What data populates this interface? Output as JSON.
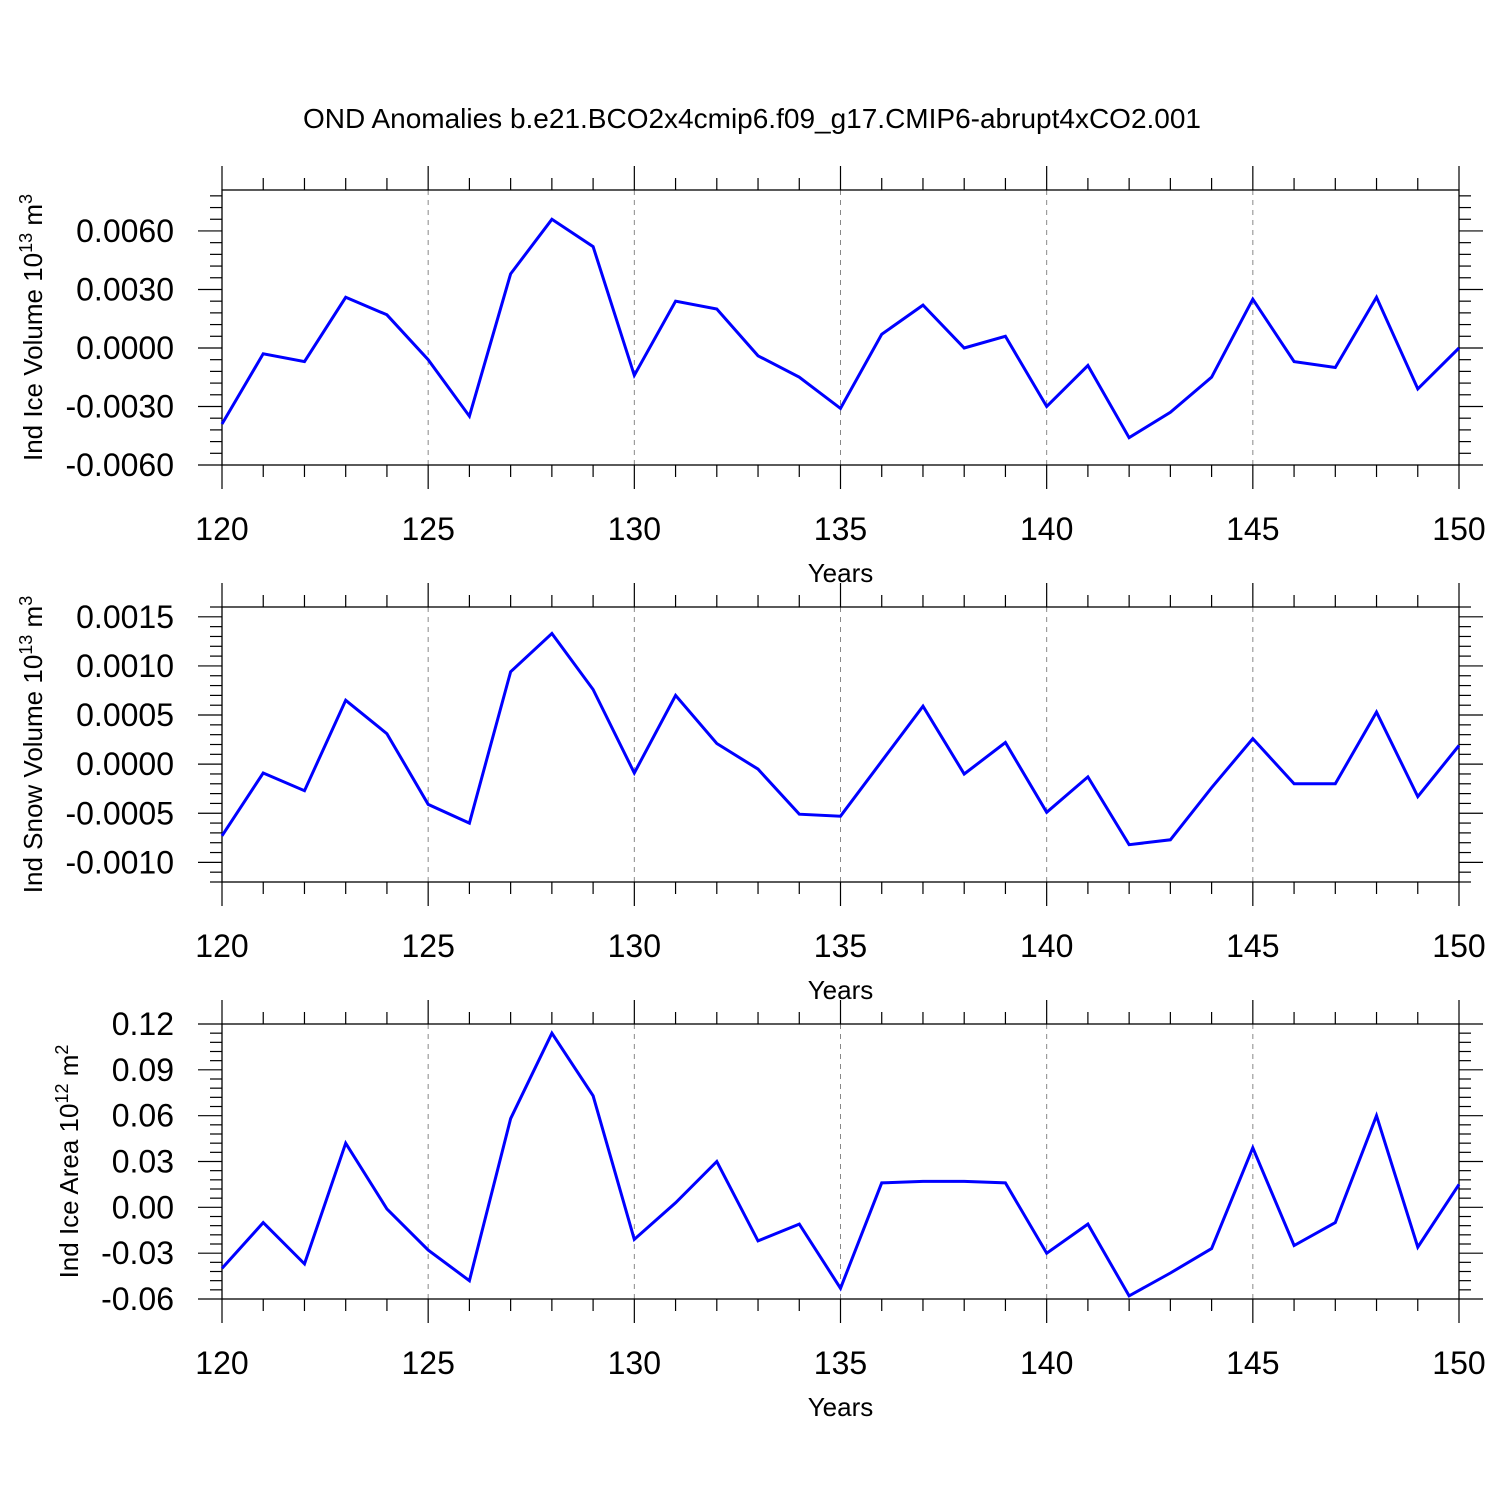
{
  "title": "OND Anomalies b.e21.BCO2x4cmip6.f09_g17.CMIP6-abrupt4xCO2.001",
  "colors": {
    "series": "#0000ff",
    "axis": "#000000",
    "grid": "#888888"
  },
  "chart_data": [
    {
      "type": "line",
      "xlabel": "Years",
      "ylabel": {
        "base": "Ind Ice Volume 10",
        "exp": "13",
        "unit": " m",
        "unit_exp": "3"
      },
      "xlim": [
        120,
        150
      ],
      "ylim": [
        -0.006,
        0.0081
      ],
      "x_ticks": [
        "120",
        "125",
        "130",
        "135",
        "140",
        "145",
        "150"
      ],
      "y_ticks": [
        {
          "value": 0.006,
          "label": "0.0060"
        },
        {
          "value": 0.003,
          "label": "0.0030"
        },
        {
          "value": 0.0,
          "label": "0.0000"
        },
        {
          "value": -0.003,
          "label": "-0.0030"
        },
        {
          "value": -0.006,
          "label": "-0.0060"
        }
      ],
      "grid": "vertical dashed at major x ticks",
      "x": [
        120,
        121,
        122,
        123,
        124,
        125,
        126,
        127,
        128,
        129,
        130,
        131,
        132,
        133,
        134,
        135,
        136,
        137,
        138,
        139,
        140,
        141,
        142,
        143,
        144,
        145,
        146,
        147,
        148,
        149,
        150
      ],
      "series": [
        {
          "values": [
            -0.0039,
            -0.0003,
            -0.0007,
            0.0026,
            0.0017,
            -0.0006,
            -0.0035,
            0.0038,
            0.0066,
            0.0052,
            -0.0014,
            0.0024,
            0.002,
            -0.0004,
            -0.0015,
            -0.0031,
            0.0007,
            0.0022,
            0.0,
            0.0006,
            -0.003,
            -0.0009,
            -0.0046,
            -0.0033,
            -0.0015,
            0.0025,
            -0.0007,
            -0.001,
            0.0026,
            -0.0021,
            0.0
          ]
        }
      ]
    },
    {
      "type": "line",
      "xlabel": "Years",
      "ylabel": {
        "base": "Ind Snow Volume 10",
        "exp": "13",
        "unit": " m",
        "unit_exp": "3"
      },
      "xlim": [
        120,
        150
      ],
      "ylim": [
        -0.0012,
        0.0016
      ],
      "x_ticks": [
        "120",
        "125",
        "130",
        "135",
        "140",
        "145",
        "150"
      ],
      "y_ticks": [
        {
          "value": 0.0015,
          "label": "0.0015"
        },
        {
          "value": 0.001,
          "label": "0.0010"
        },
        {
          "value": 0.0005,
          "label": "0.0005"
        },
        {
          "value": 0.0,
          "label": "0.0000"
        },
        {
          "value": -0.0005,
          "label": "-0.0005"
        },
        {
          "value": -0.001,
          "label": "-0.0010"
        }
      ],
      "grid": "vertical dashed at major x ticks",
      "x": [
        120,
        121,
        122,
        123,
        124,
        125,
        126,
        127,
        128,
        129,
        130,
        131,
        132,
        133,
        134,
        135,
        136,
        137,
        138,
        139,
        140,
        141,
        142,
        143,
        144,
        145,
        146,
        147,
        148,
        149,
        150
      ],
      "series": [
        {
          "values": [
            -0.00073,
            -9e-05,
            -0.00027,
            0.00065,
            0.00031,
            -0.00041,
            -0.0006,
            0.00094,
            0.00133,
            0.00076,
            -9e-05,
            0.0007,
            0.00021,
            -5e-05,
            -0.00051,
            -0.00053,
            3e-05,
            0.00059,
            -0.0001,
            0.00022,
            -0.00049,
            -0.00013,
            -0.00082,
            -0.00077,
            -0.00024,
            0.00026,
            -0.0002,
            -0.0002,
            0.00053,
            -0.00033,
            0.00019
          ]
        }
      ]
    },
    {
      "type": "line",
      "xlabel": "Years",
      "ylabel": {
        "base": "Ind Ice Area 10",
        "exp": "12",
        "unit": " m",
        "unit_exp": "2"
      },
      "xlim": [
        120,
        150
      ],
      "ylim": [
        -0.06,
        0.12
      ],
      "x_ticks": [
        "120",
        "125",
        "130",
        "135",
        "140",
        "145",
        "150"
      ],
      "y_ticks": [
        {
          "value": 0.12,
          "label": "0.12"
        },
        {
          "value": 0.09,
          "label": "0.09"
        },
        {
          "value": 0.06,
          "label": "0.06"
        },
        {
          "value": 0.03,
          "label": "0.03"
        },
        {
          "value": 0.0,
          "label": "0.00"
        },
        {
          "value": -0.03,
          "label": "-0.03"
        },
        {
          "value": -0.06,
          "label": "-0.06"
        }
      ],
      "grid": "vertical dashed at major x ticks",
      "x": [
        120,
        121,
        122,
        123,
        124,
        125,
        126,
        127,
        128,
        129,
        130,
        131,
        132,
        133,
        134,
        135,
        136,
        137,
        138,
        139,
        140,
        141,
        142,
        143,
        144,
        145,
        146,
        147,
        148,
        149,
        150
      ],
      "series": [
        {
          "values": [
            -0.04,
            -0.01,
            -0.037,
            0.042,
            -0.001,
            -0.028,
            -0.048,
            0.058,
            0.114,
            0.073,
            -0.021,
            0.003,
            0.03,
            -0.022,
            -0.011,
            -0.053,
            0.016,
            0.017,
            0.017,
            0.016,
            -0.03,
            -0.011,
            -0.058,
            -0.043,
            -0.027,
            0.039,
            -0.025,
            -0.01,
            0.06,
            -0.026,
            0.015
          ]
        }
      ]
    }
  ]
}
